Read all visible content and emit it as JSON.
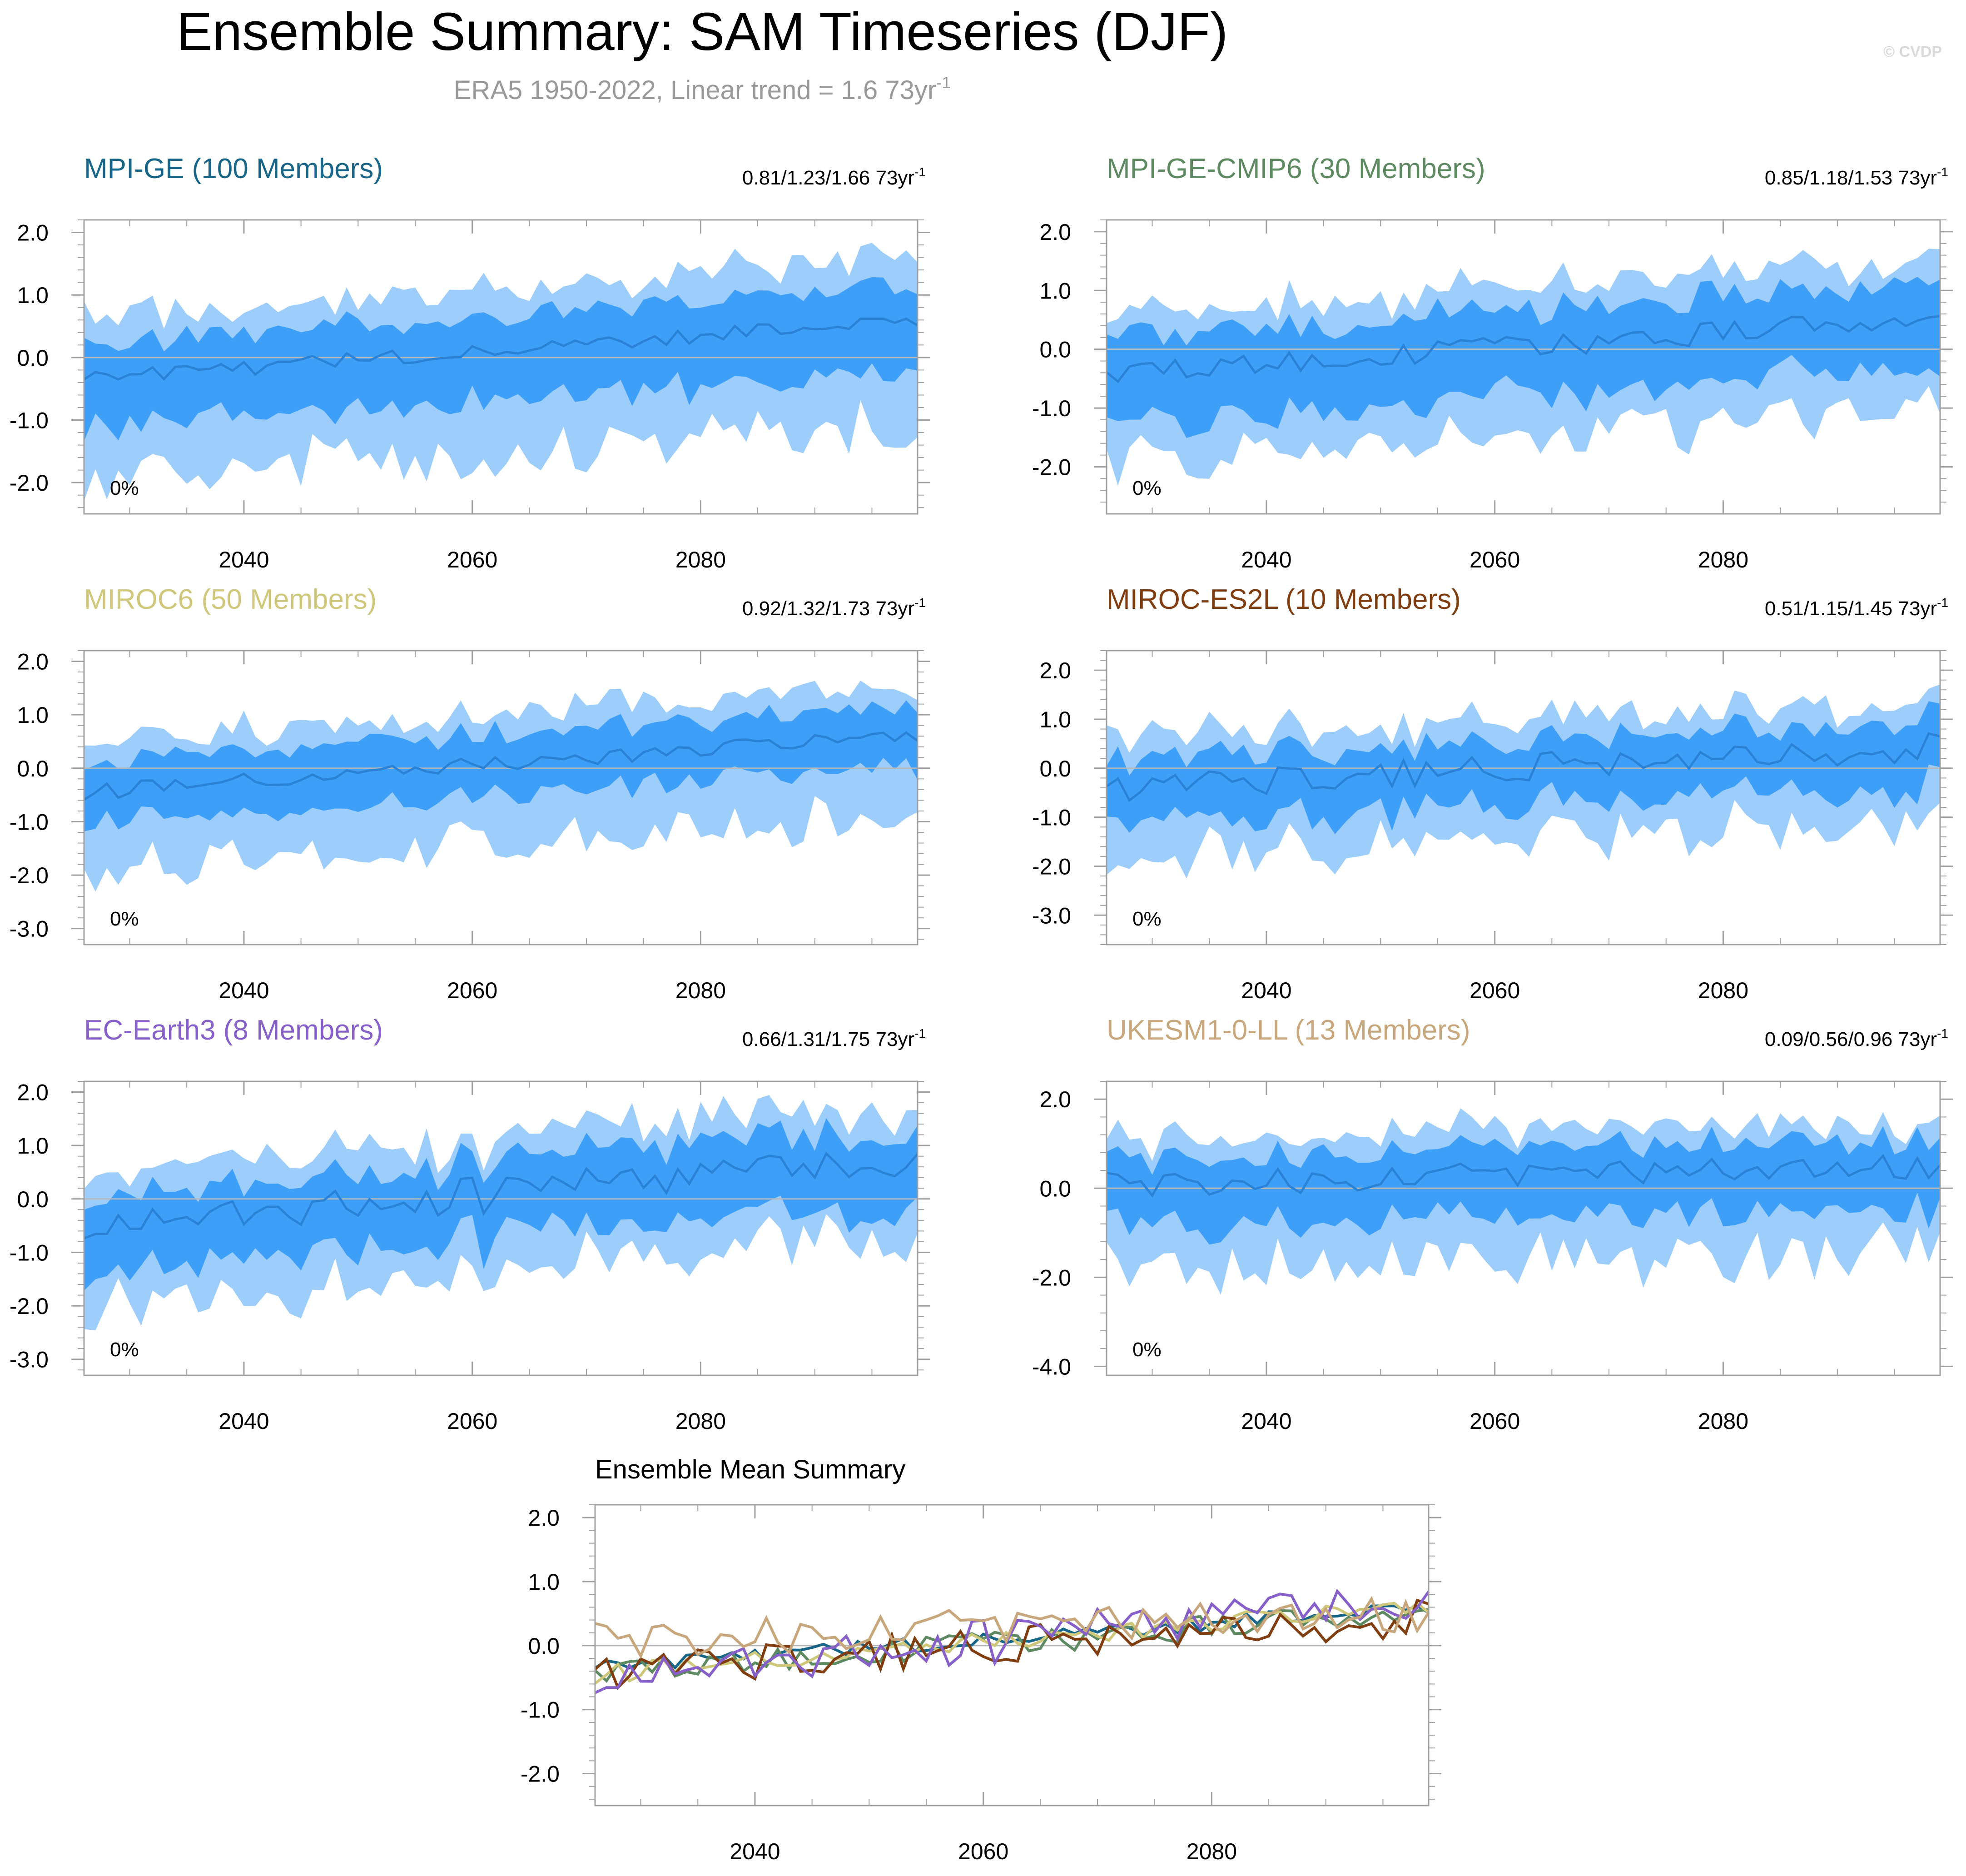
{
  "title": "Ensemble Summary: SAM Timeseries (DJF)",
  "subtitle": "ERA5 1950-2022, Linear trend = 1.6 73yr",
  "subtitle_sup": "-1",
  "watermark": "© CVDP",
  "colors": {
    "band_outer": "#9ccdfb",
    "band_inner": "#3d9ff8",
    "mean_line": "#2a82d6",
    "zero_line": "#b8b8b8",
    "axis": "#a0a0a0",
    "text": "#000000"
  },
  "chart_data": [
    {
      "type": "area",
      "title": "MPI-GE (100 Members)",
      "title_color": "#176688",
      "trend_label": "0.81/1.23/1.66 73yr",
      "trend_sup": "-1",
      "pct_label": "0%",
      "xlim": [
        2026,
        2099
      ],
      "ylim": [
        -2.5,
        2.2
      ],
      "yticks": [
        -2.0,
        -1.0,
        0.0,
        1.0,
        2.0
      ],
      "ytick_labels": [
        "-2.0",
        "-1.0",
        "0.0",
        "1.0",
        "2.0"
      ],
      "xticks": [
        2040,
        2060,
        2080
      ],
      "xtick_labels": [
        "2040",
        "2060",
        "2080"
      ],
      "ystart": -0.35,
      "yend": 0.6,
      "noise": 0.12,
      "ymin": -0.35,
      "ymax": 0.62,
      "outer_lo": 1.65,
      "outer_hi": 1.0,
      "inner_lo": 0.8,
      "inner_hi": 0.55,
      "seed": 3
    },
    {
      "type": "area",
      "title": "MPI-GE-CMIP6 (30 Members)",
      "title_color": "#5e8a62",
      "trend_label": "0.85/1.18/1.53 73yr",
      "trend_sup": "-1",
      "pct_label": "0%",
      "xlim": [
        2026,
        2099
      ],
      "ylim": [
        -2.8,
        2.2
      ],
      "yticks": [
        -2.0,
        -1.0,
        0.0,
        1.0,
        2.0
      ],
      "ytick_labels": [
        "-2.0",
        "-1.0",
        "0.0",
        "1.0",
        "2.0"
      ],
      "xticks": [
        2040,
        2060,
        2080
      ],
      "xtick_labels": [
        "2040",
        "2060",
        "2080"
      ],
      "ystart": -0.45,
      "yend": 0.55,
      "noise": 0.2,
      "ymin": -0.55,
      "ymax": 0.85,
      "outer_lo": 1.5,
      "outer_hi": 1.0,
      "inner_lo": 0.85,
      "inner_hi": 0.6,
      "seed": 11
    },
    {
      "type": "area",
      "title": "MIROC6 (50 Members)",
      "title_color": "#cfc77a",
      "trend_label": "0.92/1.32/1.73 73yr",
      "trend_sup": "-1",
      "pct_label": "0%",
      "xlim": [
        2026,
        2099
      ],
      "ylim": [
        -3.3,
        2.2
      ],
      "yticks": [
        -3.0,
        -2.0,
        -1.0,
        0.0,
        1.0,
        2.0
      ],
      "ytick_labels": [
        "-3.0",
        "-2.0",
        "-1.0",
        "0.0",
        "1.0",
        "2.0"
      ],
      "xticks": [
        2040,
        2060,
        2080
      ],
      "xtick_labels": [
        "2040",
        "2060",
        "2080"
      ],
      "ystart": -0.45,
      "yend": 0.65,
      "noise": 0.15,
      "ymin": -0.7,
      "ymax": 0.75,
      "outer_lo": 1.5,
      "outer_hi": 0.95,
      "inner_lo": 0.6,
      "inner_hi": 0.55,
      "seed": 21
    },
    {
      "type": "area",
      "title": "MIROC-ES2L (10 Members)",
      "title_color": "#7f3d10",
      "trend_label": "0.51/1.15/1.45 73yr",
      "trend_sup": "-1",
      "pct_label": "0%",
      "xlim": [
        2026,
        2099
      ],
      "ylim": [
        -3.6,
        2.4
      ],
      "yticks": [
        -3.0,
        -2.0,
        -1.0,
        0.0,
        1.0,
        2.0
      ],
      "ytick_labels": [
        "-3.0",
        "-2.0",
        "-1.0",
        "0.0",
        "1.0",
        "2.0"
      ],
      "xticks": [
        2040,
        2060,
        2080
      ],
      "xtick_labels": [
        "2040",
        "2060",
        "2080"
      ],
      "ystart": -0.45,
      "yend": 0.45,
      "noise": 0.3,
      "ymin": -1.0,
      "ymax": 0.85,
      "outer_lo": 1.45,
      "outer_hi": 1.0,
      "inner_lo": 0.75,
      "inner_hi": 0.55,
      "seed": 37
    },
    {
      "type": "area",
      "title": "EC-Earth3 (8 Members)",
      "title_color": "#8660c8",
      "trend_label": "0.66/1.31/1.75 73yr",
      "trend_sup": "-1",
      "pct_label": "0%",
      "xlim": [
        2026,
        2099
      ],
      "ylim": [
        -3.3,
        2.2
      ],
      "yticks": [
        -3.0,
        -2.0,
        -1.0,
        0.0,
        1.0,
        2.0
      ],
      "ytick_labels": [
        "-3.0",
        "-2.0",
        "-1.0",
        "0.0",
        "1.0",
        "2.0"
      ],
      "xticks": [
        2040,
        2060,
        2080
      ],
      "xtick_labels": [
        "2040",
        "2060",
        "2080"
      ],
      "ystart": -0.55,
      "yend": 0.75,
      "noise": 0.35,
      "ymin": -1.2,
      "ymax": 0.85,
      "outer_lo": 1.5,
      "outer_hi": 1.0,
      "inner_lo": 0.85,
      "inner_hi": 0.55,
      "seed": 53
    },
    {
      "type": "area",
      "title": "UKESM1-0-LL (13 Members)",
      "title_color": "#c9a77c",
      "trend_label": "0.09/0.56/0.96 73yr",
      "trend_sup": "-1",
      "pct_label": "0%",
      "xlim": [
        2026,
        2099
      ],
      "ylim": [
        -4.2,
        2.4
      ],
      "yticks": [
        -4.0,
        -2.0,
        0.0,
        2.0
      ],
      "ytick_labels": [
        "-4.0",
        "-2.0",
        "0.0",
        "2.0"
      ],
      "xticks": [
        2040,
        2060,
        2080
      ],
      "xtick_labels": [
        "2040",
        "2060",
        "2080"
      ],
      "ystart": 0.1,
      "yend": 0.5,
      "noise": 0.3,
      "ymin": -1.0,
      "ymax": 0.85,
      "outer_lo": 1.9,
      "outer_hi": 1.0,
      "inner_lo": 0.95,
      "inner_hi": 0.6,
      "seed": 71
    },
    {
      "type": "line",
      "title": "Ensemble Mean Summary",
      "xlim": [
        2026,
        2099
      ],
      "ylim": [
        -2.5,
        2.2
      ],
      "yticks": [
        -2.0,
        -1.0,
        0.0,
        1.0,
        2.0
      ],
      "ytick_labels": [
        "-2.0",
        "-1.0",
        "0.0",
        "1.0",
        "2.0"
      ],
      "xticks": [
        2040,
        2060,
        2080
      ],
      "xtick_labels": [
        "2040",
        "2060",
        "2080"
      ],
      "series": [
        {
          "name": "MPI-GE",
          "color": "#176688",
          "ref": 0
        },
        {
          "name": "MPI-GE-CMIP6",
          "color": "#5e8a62",
          "ref": 1
        },
        {
          "name": "MIROC6",
          "color": "#cfc77a",
          "ref": 2
        },
        {
          "name": "MIROC-ES2L",
          "color": "#7f3d10",
          "ref": 3
        },
        {
          "name": "EC-Earth3",
          "color": "#8660c8",
          "ref": 4
        },
        {
          "name": "UKESM1-0-LL",
          "color": "#c9a77c",
          "ref": 5
        }
      ]
    }
  ]
}
